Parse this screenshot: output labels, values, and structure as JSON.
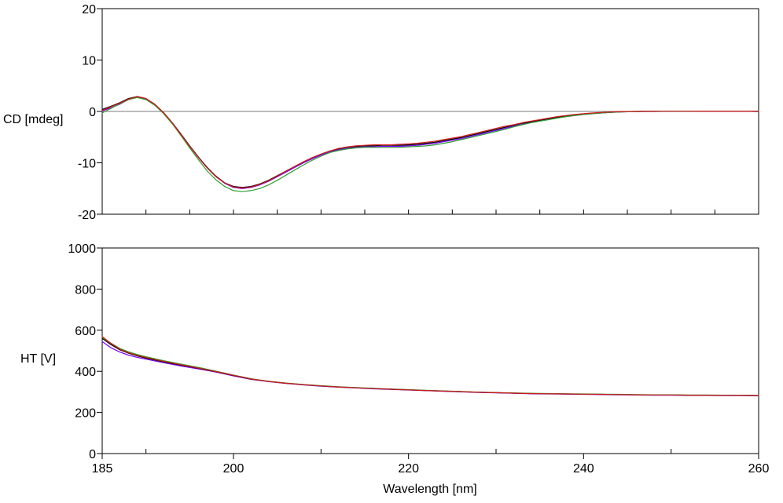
{
  "chart_data": [
    {
      "type": "line",
      "title": "",
      "ylabel": "CD [mdeg]",
      "xlabel": "",
      "xlim": [
        185,
        260
      ],
      "ylim": [
        -20,
        20
      ],
      "yticks": [
        "-20",
        "-10",
        "0",
        "10",
        "20"
      ],
      "xticks_minor": [
        190,
        195,
        200,
        205,
        210,
        215,
        220,
        225,
        230,
        235,
        240,
        245,
        250,
        255
      ],
      "zero_line": true,
      "series": [
        {
          "color": "#7a00ff",
          "x": [
            185,
            186,
            187,
            188,
            189,
            190,
            191,
            192,
            193,
            194,
            195,
            196,
            197,
            198,
            199,
            200,
            201,
            202,
            203,
            204,
            205,
            206,
            207,
            208,
            209,
            210,
            211,
            212,
            213,
            214,
            215,
            216,
            217,
            218,
            219,
            220,
            221,
            222,
            223,
            224,
            225,
            226,
            227,
            228,
            229,
            230,
            231,
            232,
            233,
            234,
            235,
            236,
            237,
            238,
            239,
            240,
            241,
            242,
            243,
            244,
            245,
            246,
            247,
            248,
            249,
            250,
            251,
            252,
            253,
            254,
            255,
            256,
            257,
            258,
            259,
            260
          ],
          "values": [
            0.1,
            0.7,
            1.4,
            2.3,
            2.8,
            2.4,
            1.3,
            -0.3,
            -2.3,
            -4.5,
            -6.8,
            -9.0,
            -11.0,
            -12.7,
            -14.0,
            -14.8,
            -15.0,
            -14.8,
            -14.3,
            -13.6,
            -12.7,
            -11.8,
            -10.9,
            -10.0,
            -9.2,
            -8.5,
            -7.9,
            -7.5,
            -7.2,
            -7.0,
            -6.9,
            -6.9,
            -6.8,
            -6.8,
            -6.8,
            -6.7,
            -6.6,
            -6.4,
            -6.2,
            -5.9,
            -5.6,
            -5.3,
            -4.9,
            -4.5,
            -4.1,
            -3.7,
            -3.3,
            -2.9,
            -2.5,
            -2.1,
            -1.8,
            -1.5,
            -1.2,
            -1.0,
            -0.8,
            -0.6,
            -0.45,
            -0.3,
            -0.2,
            -0.12,
            -0.06,
            -0.02,
            0,
            0,
            0.02,
            0.03,
            0.03,
            0.03,
            0.02,
            0.02,
            0.01,
            0.01,
            0.01,
            0.01,
            0.01,
            0.0
          ]
        },
        {
          "color": "#000000",
          "x": [
            185,
            186,
            187,
            188,
            189,
            190,
            191,
            192,
            193,
            194,
            195,
            196,
            197,
            198,
            199,
            200,
            201,
            202,
            203,
            204,
            205,
            206,
            207,
            208,
            209,
            210,
            211,
            212,
            213,
            214,
            215,
            216,
            217,
            218,
            219,
            220,
            221,
            222,
            223,
            224,
            225,
            226,
            227,
            228,
            229,
            230,
            231,
            232,
            233,
            234,
            235,
            236,
            237,
            238,
            239,
            240,
            241,
            242,
            243,
            244,
            245,
            246,
            247,
            248,
            249,
            250,
            251,
            252,
            253,
            254,
            255,
            256,
            257,
            258,
            259,
            260
          ],
          "values": [
            0.4,
            1.0,
            1.7,
            2.5,
            2.9,
            2.5,
            1.4,
            -0.2,
            -2.2,
            -4.4,
            -6.7,
            -8.9,
            -10.9,
            -12.6,
            -13.9,
            -14.6,
            -14.8,
            -14.6,
            -14.1,
            -13.4,
            -12.5,
            -11.6,
            -10.7,
            -9.8,
            -9.0,
            -8.3,
            -7.7,
            -7.3,
            -7.0,
            -6.8,
            -6.7,
            -6.7,
            -6.6,
            -6.6,
            -6.6,
            -6.5,
            -6.4,
            -6.2,
            -6.0,
            -5.7,
            -5.4,
            -5.1,
            -4.7,
            -4.3,
            -3.9,
            -3.5,
            -3.1,
            -2.7,
            -2.3,
            -2.0,
            -1.7,
            -1.4,
            -1.1,
            -0.9,
            -0.7,
            -0.5,
            -0.4,
            -0.25,
            -0.15,
            -0.08,
            -0.03,
            0,
            0.01,
            0.02,
            0.03,
            0.03,
            0.03,
            0.03,
            0.02,
            0.02,
            0.01,
            0.01,
            0.01,
            0.01,
            0.01,
            0.0
          ]
        },
        {
          "color": "#2e9e2e",
          "x": [
            185,
            186,
            187,
            188,
            189,
            190,
            191,
            192,
            193,
            194,
            195,
            196,
            197,
            198,
            199,
            200,
            201,
            202,
            203,
            204,
            205,
            206,
            207,
            208,
            209,
            210,
            211,
            212,
            213,
            214,
            215,
            216,
            217,
            218,
            219,
            220,
            221,
            222,
            223,
            224,
            225,
            226,
            227,
            228,
            229,
            230,
            231,
            232,
            233,
            234,
            235,
            236,
            237,
            238,
            239,
            240,
            241,
            242,
            243,
            244,
            245,
            246,
            247,
            248,
            249,
            250,
            251,
            252,
            253,
            254,
            255,
            256,
            257,
            258,
            259,
            260
          ],
          "values": [
            -0.3,
            0.6,
            1.5,
            2.3,
            2.7,
            2.3,
            1.2,
            -0.4,
            -2.4,
            -4.7,
            -7.1,
            -9.4,
            -11.6,
            -13.3,
            -14.6,
            -15.4,
            -15.6,
            -15.4,
            -15.0,
            -14.3,
            -13.4,
            -12.4,
            -11.4,
            -10.4,
            -9.5,
            -8.7,
            -8.0,
            -7.6,
            -7.3,
            -7.1,
            -7.0,
            -7.0,
            -7.0,
            -7.0,
            -7.0,
            -6.9,
            -6.8,
            -6.7,
            -6.5,
            -6.2,
            -5.9,
            -5.5,
            -5.1,
            -4.7,
            -4.3,
            -3.9,
            -3.5,
            -3.0,
            -2.6,
            -2.2,
            -1.9,
            -1.6,
            -1.3,
            -1.0,
            -0.8,
            -0.6,
            -0.45,
            -0.3,
            -0.2,
            -0.12,
            -0.06,
            -0.02,
            0,
            0,
            0.01,
            0.02,
            0.02,
            0.02,
            0.02,
            0.01,
            0.01,
            0.01,
            0.01,
            0.01,
            0.01,
            0.0
          ]
        },
        {
          "color": "#d11a1a",
          "x": [
            185,
            186,
            187,
            188,
            189,
            190,
            191,
            192,
            193,
            194,
            195,
            196,
            197,
            198,
            199,
            200,
            201,
            202,
            203,
            204,
            205,
            206,
            207,
            208,
            209,
            210,
            211,
            212,
            213,
            214,
            215,
            216,
            217,
            218,
            219,
            220,
            221,
            222,
            223,
            224,
            225,
            226,
            227,
            228,
            229,
            230,
            231,
            232,
            233,
            234,
            235,
            236,
            237,
            238,
            239,
            240,
            241,
            242,
            243,
            244,
            245,
            246,
            247,
            248,
            249,
            250,
            251,
            252,
            253,
            254,
            255,
            256,
            257,
            258,
            259,
            260
          ],
          "values": [
            0.2,
            0.9,
            1.6,
            2.4,
            2.9,
            2.5,
            1.4,
            -0.2,
            -2.2,
            -4.5,
            -6.8,
            -9.0,
            -11.0,
            -12.7,
            -13.9,
            -14.7,
            -14.9,
            -14.7,
            -14.2,
            -13.5,
            -12.6,
            -11.6,
            -10.7,
            -9.8,
            -9.0,
            -8.3,
            -7.7,
            -7.2,
            -6.9,
            -6.7,
            -6.6,
            -6.5,
            -6.5,
            -6.5,
            -6.4,
            -6.3,
            -6.2,
            -6.0,
            -5.8,
            -5.5,
            -5.2,
            -4.9,
            -4.5,
            -4.1,
            -3.7,
            -3.3,
            -2.9,
            -2.6,
            -2.2,
            -1.9,
            -1.6,
            -1.3,
            -1.0,
            -0.8,
            -0.6,
            -0.45,
            -0.3,
            -0.2,
            -0.12,
            -0.06,
            -0.02,
            0,
            0.01,
            0.02,
            0.03,
            0.03,
            0.03,
            0.03,
            0.02,
            0.02,
            0.01,
            0.01,
            0.01,
            0.01,
            0.01,
            0.0
          ]
        }
      ]
    },
    {
      "type": "line",
      "title": "",
      "ylabel": "HT [V]",
      "xlabel": "Wavelength [nm]",
      "xlim": [
        185,
        260
      ],
      "ylim": [
        0,
        1000
      ],
      "yticks": [
        "0",
        "200",
        "400",
        "600",
        "800",
        "1000"
      ],
      "xticks": [
        "185",
        "200",
        "220",
        "240",
        "260"
      ],
      "xtick_values": [
        185,
        200,
        220,
        240,
        260
      ],
      "xticks_minor": [
        190,
        210,
        230,
        250
      ],
      "series": [
        {
          "color": "#7a00ff",
          "x": [
            185,
            186,
            187,
            188,
            189,
            190,
            192,
            194,
            196,
            198,
            200,
            202,
            204,
            206,
            208,
            210,
            212,
            214,
            216,
            218,
            220,
            222,
            224,
            226,
            228,
            230,
            232,
            234,
            236,
            238,
            240,
            242,
            244,
            246,
            248,
            250,
            252,
            254,
            256,
            258,
            260
          ],
          "values": [
            545,
            515,
            494,
            479,
            468,
            459,
            442,
            426,
            412,
            396,
            378,
            361,
            350,
            341,
            334,
            328,
            323,
            319,
            315,
            312,
            309,
            306,
            303,
            300,
            297,
            295,
            293,
            291,
            290,
            289,
            288,
            287,
            286,
            285,
            284,
            284,
            283,
            283,
            282,
            282,
            281
          ]
        },
        {
          "color": "#000000",
          "x": [
            185,
            186,
            187,
            188,
            189,
            190,
            192,
            194,
            196,
            198,
            200,
            202,
            204,
            206,
            208,
            210,
            212,
            214,
            216,
            218,
            220,
            222,
            224,
            226,
            228,
            230,
            232,
            234,
            236,
            238,
            240,
            242,
            244,
            246,
            248,
            250,
            252,
            254,
            256,
            258,
            260
          ],
          "values": [
            560,
            530,
            505,
            488,
            475,
            464,
            446,
            430,
            415,
            398,
            380,
            362,
            351,
            342,
            335,
            329,
            324,
            320,
            316,
            313,
            310,
            307,
            304,
            301,
            298,
            296,
            294,
            292,
            291,
            290,
            289,
            288,
            287,
            286,
            285,
            285,
            284,
            284,
            283,
            283,
            282
          ]
        },
        {
          "color": "#2e9e2e",
          "x": [
            185,
            186,
            187,
            188,
            189,
            190,
            192,
            194,
            196,
            198,
            200,
            202,
            204,
            206,
            208,
            210,
            212,
            214,
            216,
            218,
            220,
            222,
            224,
            226,
            228,
            230,
            232,
            234,
            236,
            238,
            240,
            242,
            244,
            246,
            248,
            250,
            252,
            254,
            256,
            258,
            260
          ],
          "values": [
            566,
            537,
            512,
            495,
            482,
            471,
            452,
            435,
            419,
            401,
            382,
            364,
            352,
            343,
            336,
            330,
            325,
            321,
            317,
            314,
            311,
            308,
            305,
            302,
            299,
            297,
            295,
            293,
            292,
            291,
            290,
            289,
            288,
            287,
            286,
            286,
            285,
            285,
            284,
            284,
            283
          ]
        },
        {
          "color": "#d11a1a",
          "x": [
            185,
            186,
            187,
            188,
            189,
            190,
            192,
            194,
            196,
            198,
            200,
            202,
            204,
            206,
            208,
            210,
            212,
            214,
            216,
            218,
            220,
            222,
            224,
            226,
            228,
            230,
            232,
            234,
            236,
            238,
            240,
            242,
            244,
            246,
            248,
            250,
            252,
            254,
            256,
            258,
            260
          ],
          "values": [
            570,
            535,
            508,
            491,
            478,
            467,
            449,
            432,
            416,
            399,
            381,
            363,
            351,
            342,
            335,
            329,
            324,
            320,
            316,
            313,
            310,
            307,
            304,
            301,
            298,
            296,
            294,
            292,
            291,
            290,
            289,
            288,
            287,
            286,
            285,
            285,
            284,
            284,
            283,
            283,
            282
          ]
        }
      ]
    }
  ]
}
